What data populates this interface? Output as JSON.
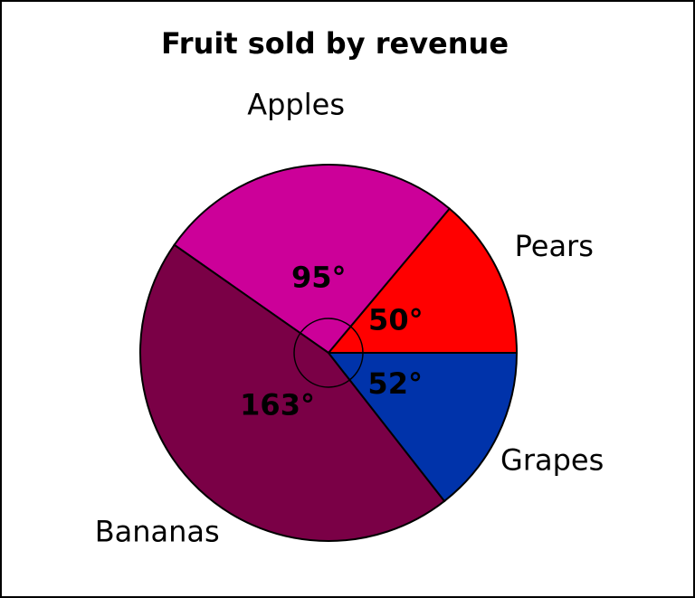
{
  "chart_data": {
    "type": "pie",
    "title": "Fruit sold by revenue",
    "categories": [
      "Pears",
      "Apples",
      "Bananas",
      "Grapes"
    ],
    "values": [
      50,
      95,
      163,
      52
    ],
    "value_labels": [
      "50°",
      "95°",
      "163°",
      "52°"
    ],
    "colors": [
      "#ff0000",
      "#cc0099",
      "#7a0046",
      "#0033aa"
    ]
  }
}
